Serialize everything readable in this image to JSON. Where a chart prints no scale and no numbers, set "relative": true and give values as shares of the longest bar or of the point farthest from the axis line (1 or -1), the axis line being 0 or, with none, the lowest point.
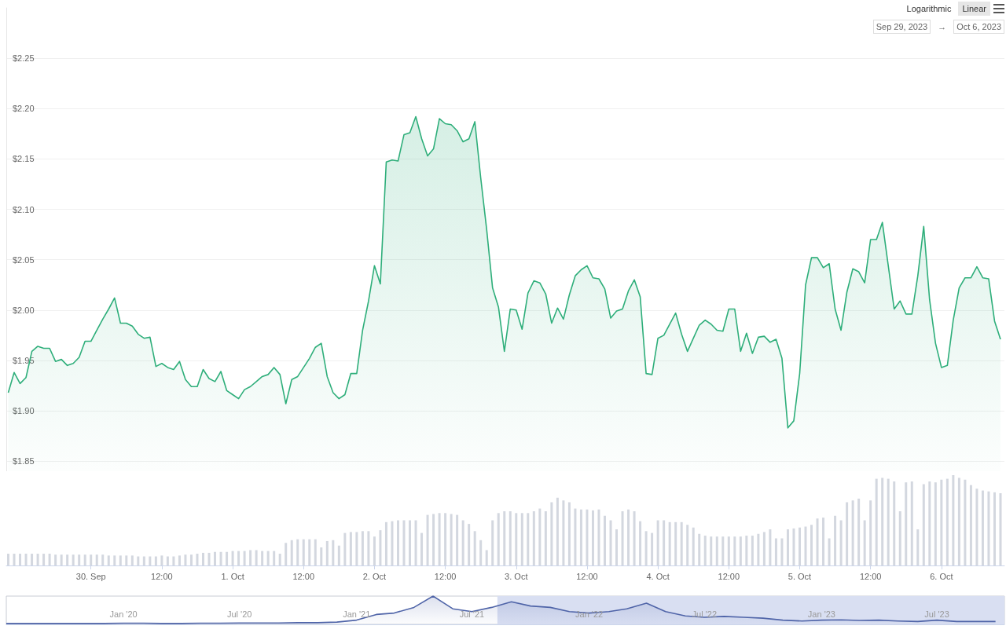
{
  "chart_data": [
    {
      "type": "area",
      "annotations": [
        "Logarithmic",
        "Linear",
        "Sep 29, 2023",
        "→",
        "Oct 6, 2023"
      ],
      "tick_labels": "y",
      "grid": "y",
      "xlim": [
        "2023-09-29T09:40",
        "2023-10-06T10:40"
      ],
      "ylim": [
        1.84,
        2.3
      ],
      "yticks": [
        {
          "value": 1.85,
          "label": "$1.85"
        },
        {
          "value": 1.9,
          "label": "$1.90"
        },
        {
          "value": 1.95,
          "label": "$1.95"
        },
        {
          "value": 2.0,
          "label": "$2.00"
        },
        {
          "value": 2.05,
          "label": "$2.05"
        },
        {
          "value": 2.1,
          "label": "$2.10"
        },
        {
          "value": 2.15,
          "label": "$2.15"
        },
        {
          "value": 2.2,
          "label": "$2.20"
        },
        {
          "value": 2.25,
          "label": "$2.25"
        }
      ],
      "x": [
        "2023-09-29T10:00",
        "2023-09-29T11:00",
        "2023-09-29T12:00",
        "2023-09-29T13:00",
        "2023-09-29T14:00",
        "2023-09-29T15:00",
        "2023-09-29T16:00",
        "2023-09-29T17:00",
        "2023-09-29T18:00",
        "2023-09-29T19:00",
        "2023-09-29T20:00",
        "2023-09-29T21:00",
        "2023-09-29T22:00",
        "2023-09-29T23:00",
        "2023-09-30T00:00",
        "2023-09-30T01:00",
        "2023-09-30T02:00",
        "2023-09-30T03:00",
        "2023-09-30T04:00",
        "2023-09-30T05:00",
        "2023-09-30T06:00",
        "2023-09-30T07:00",
        "2023-09-30T08:00",
        "2023-09-30T09:00",
        "2023-09-30T10:00",
        "2023-09-30T11:00",
        "2023-09-30T12:00",
        "2023-09-30T13:00",
        "2023-09-30T14:00",
        "2023-09-30T15:00",
        "2023-09-30T16:00",
        "2023-09-30T17:00",
        "2023-09-30T18:00",
        "2023-09-30T19:00",
        "2023-09-30T20:00",
        "2023-09-30T21:00",
        "2023-09-30T22:00",
        "2023-09-30T23:00",
        "2023-10-01T00:00",
        "2023-10-01T01:00",
        "2023-10-01T02:00",
        "2023-10-01T03:00",
        "2023-10-01T04:00",
        "2023-10-01T05:00",
        "2023-10-01T06:00",
        "2023-10-01T07:00",
        "2023-10-01T08:00",
        "2023-10-01T09:00",
        "2023-10-01T10:00",
        "2023-10-01T11:00",
        "2023-10-01T12:00",
        "2023-10-01T13:00",
        "2023-10-01T14:00",
        "2023-10-01T15:00",
        "2023-10-01T16:00",
        "2023-10-01T17:00",
        "2023-10-01T18:00",
        "2023-10-01T19:00",
        "2023-10-01T20:00",
        "2023-10-01T21:00",
        "2023-10-01T22:00",
        "2023-10-01T23:00",
        "2023-10-02T00:00",
        "2023-10-02T01:00",
        "2023-10-02T02:00",
        "2023-10-02T03:00",
        "2023-10-02T04:00",
        "2023-10-02T05:00",
        "2023-10-02T06:00",
        "2023-10-02T07:00",
        "2023-10-02T08:00",
        "2023-10-02T09:00",
        "2023-10-02T10:00",
        "2023-10-02T11:00",
        "2023-10-02T12:00",
        "2023-10-02T13:00",
        "2023-10-02T14:00",
        "2023-10-02T15:00",
        "2023-10-02T16:00",
        "2023-10-02T17:00",
        "2023-10-02T18:00",
        "2023-10-02T19:00",
        "2023-10-02T20:00",
        "2023-10-02T21:00",
        "2023-10-02T22:00",
        "2023-10-02T23:00",
        "2023-10-03T00:00",
        "2023-10-03T01:00",
        "2023-10-03T02:00",
        "2023-10-03T03:00",
        "2023-10-03T04:00",
        "2023-10-03T05:00",
        "2023-10-03T06:00",
        "2023-10-03T07:00",
        "2023-10-03T08:00",
        "2023-10-03T09:00",
        "2023-10-03T10:00",
        "2023-10-03T11:00",
        "2023-10-03T12:00",
        "2023-10-03T13:00",
        "2023-10-03T14:00",
        "2023-10-03T15:00",
        "2023-10-03T16:00",
        "2023-10-03T17:00",
        "2023-10-03T18:00",
        "2023-10-03T19:00",
        "2023-10-03T20:00",
        "2023-10-03T21:00",
        "2023-10-03T22:00",
        "2023-10-03T23:00",
        "2023-10-04T00:00",
        "2023-10-04T01:00",
        "2023-10-04T02:00",
        "2023-10-04T03:00",
        "2023-10-04T04:00",
        "2023-10-04T05:00",
        "2023-10-04T06:00",
        "2023-10-04T07:00",
        "2023-10-04T08:00",
        "2023-10-04T09:00",
        "2023-10-04T10:00",
        "2023-10-04T11:00",
        "2023-10-04T12:00",
        "2023-10-04T13:00",
        "2023-10-04T14:00",
        "2023-10-04T15:00",
        "2023-10-04T16:00",
        "2023-10-04T17:00",
        "2023-10-04T18:00",
        "2023-10-04T19:00",
        "2023-10-04T20:00",
        "2023-10-04T21:00",
        "2023-10-04T22:00",
        "2023-10-04T23:00",
        "2023-10-05T00:00",
        "2023-10-05T01:00",
        "2023-10-05T02:00",
        "2023-10-05T03:00",
        "2023-10-05T04:00",
        "2023-10-05T05:00",
        "2023-10-05T06:00",
        "2023-10-05T07:00",
        "2023-10-05T08:00",
        "2023-10-05T09:00",
        "2023-10-05T10:00",
        "2023-10-05T11:00",
        "2023-10-05T12:00",
        "2023-10-05T13:00",
        "2023-10-05T14:00",
        "2023-10-05T15:00",
        "2023-10-05T16:00",
        "2023-10-05T17:00",
        "2023-10-05T18:00",
        "2023-10-05T19:00",
        "2023-10-05T20:00",
        "2023-10-05T21:00",
        "2023-10-05T22:00",
        "2023-10-05T23:00",
        "2023-10-06T00:00",
        "2023-10-06T01:00",
        "2023-10-06T02:00",
        "2023-10-06T03:00",
        "2023-10-06T04:00",
        "2023-10-06T05:00",
        "2023-10-06T06:00",
        "2023-10-06T07:00",
        "2023-10-06T08:00",
        "2023-10-06T09:00",
        "2023-10-06T10:00"
      ],
      "series": [
        {
          "color": "#2eae7a",
          "values": [
            1.918,
            1.938,
            1.927,
            1.933,
            1.959,
            1.964,
            1.962,
            1.962,
            1.949,
            1.951,
            1.945,
            1.947,
            1.953,
            1.969,
            1.969,
            1.98,
            1.991,
            2.001,
            2.012,
            1.987,
            1.987,
            1.984,
            1.976,
            1.972,
            1.973,
            1.944,
            1.947,
            1.943,
            1.941,
            1.949,
            1.931,
            1.924,
            1.924,
            1.941,
            1.932,
            1.929,
            1.939,
            1.92,
            1.916,
            1.912,
            1.921,
            1.924,
            1.929,
            1.934,
            1.936,
            1.943,
            1.936,
            1.907,
            1.931,
            1.934,
            1.943,
            1.952,
            1.963,
            1.967,
            1.934,
            1.918,
            1.912,
            1.916,
            1.937,
            1.937,
            1.98,
            2.009,
            2.044,
            2.026,
            2.147,
            2.149,
            2.148,
            2.174,
            2.176,
            2.192,
            2.17,
            2.153,
            2.16,
            2.19,
            2.185,
            2.184,
            2.178,
            2.167,
            2.17,
            2.187,
            2.131,
            2.08,
            2.022,
            2.003,
            1.959,
            2.001,
            2.0,
            1.981,
            2.017,
            2.029,
            2.027,
            2.016,
            1.987,
            2.002,
            1.991,
            2.015,
            2.034,
            2.04,
            2.044,
            2.032,
            2.031,
            2.021,
            1.992,
            1.999,
            2.001,
            2.019,
            2.03,
            2.013,
            1.937,
            1.936,
            1.972,
            1.975,
            1.986,
            1.997,
            1.976,
            1.959,
            1.972,
            1.985,
            1.99,
            1.986,
            1.98,
            1.979,
            2.001,
            2.001,
            1.959,
            1.977,
            1.957,
            1.973,
            1.974,
            1.968,
            1.971,
            1.952,
            1.883,
            1.89,
            1.937,
            2.025,
            2.052,
            2.052,
            2.042,
            2.046,
            2.001,
            1.98,
            2.018,
            2.041,
            2.038,
            2.027,
            2.07,
            2.07,
            2.087,
            2.044,
            2.001,
            2.009,
            1.996,
            1.996,
            2.034,
            2.083,
            2.01,
            1.967,
            1.943,
            1.945,
            1.99,
            2.022,
            2.032,
            2.032,
            2.043,
            2.032,
            2.031,
            1.989,
            1.971
          ]
        }
      ]
    },
    {
      "type": "bar",
      "relative": true,
      "tick_labels": "x",
      "xlim": [
        "2023-09-29T09:40",
        "2023-10-06T10:40"
      ],
      "xticks": [
        {
          "value": "2023-09-30T00:00",
          "label": "30. Sep"
        },
        {
          "value": "2023-09-30T12:00",
          "label": "12:00"
        },
        {
          "value": "2023-10-01T00:00",
          "label": "1. Oct"
        },
        {
          "value": "2023-10-01T12:00",
          "label": "12:00"
        },
        {
          "value": "2023-10-02T00:00",
          "label": "2. Oct"
        },
        {
          "value": "2023-10-02T12:00",
          "label": "12:00"
        },
        {
          "value": "2023-10-03T00:00",
          "label": "3. Oct"
        },
        {
          "value": "2023-10-03T12:00",
          "label": "12:00"
        },
        {
          "value": "2023-10-04T00:00",
          "label": "4. Oct"
        },
        {
          "value": "2023-10-04T12:00",
          "label": "12:00"
        },
        {
          "value": "2023-10-05T00:00",
          "label": "5. Oct"
        },
        {
          "value": "2023-10-05T12:00",
          "label": "12:00"
        },
        {
          "value": "2023-10-06T00:00",
          "label": "6. Oct"
        }
      ],
      "x": [
        "2023-09-29T10:00",
        "2023-09-29T11:00",
        "2023-09-29T12:00",
        "2023-09-29T13:00",
        "2023-09-29T14:00",
        "2023-09-29T15:00",
        "2023-09-29T16:00",
        "2023-09-29T17:00",
        "2023-09-29T18:00",
        "2023-09-29T19:00",
        "2023-09-29T20:00",
        "2023-09-29T21:00",
        "2023-09-29T22:00",
        "2023-09-29T23:00",
        "2023-09-30T00:00",
        "2023-09-30T01:00",
        "2023-09-30T02:00",
        "2023-09-30T03:00",
        "2023-09-30T04:00",
        "2023-09-30T05:00",
        "2023-09-30T06:00",
        "2023-09-30T07:00",
        "2023-09-30T08:00",
        "2023-09-30T09:00",
        "2023-09-30T10:00",
        "2023-09-30T11:00",
        "2023-09-30T12:00",
        "2023-09-30T13:00",
        "2023-09-30T14:00",
        "2023-09-30T15:00",
        "2023-09-30T16:00",
        "2023-09-30T17:00",
        "2023-09-30T18:00",
        "2023-09-30T19:00",
        "2023-09-30T20:00",
        "2023-09-30T21:00",
        "2023-09-30T22:00",
        "2023-09-30T23:00",
        "2023-10-01T00:00",
        "2023-10-01T01:00",
        "2023-10-01T02:00",
        "2023-10-01T03:00",
        "2023-10-01T04:00",
        "2023-10-01T05:00",
        "2023-10-01T06:00",
        "2023-10-01T07:00",
        "2023-10-01T08:00",
        "2023-10-01T09:00",
        "2023-10-01T10:00",
        "2023-10-01T11:00",
        "2023-10-01T12:00",
        "2023-10-01T13:00",
        "2023-10-01T14:00",
        "2023-10-01T15:00",
        "2023-10-01T16:00",
        "2023-10-01T17:00",
        "2023-10-01T18:00",
        "2023-10-01T19:00",
        "2023-10-01T20:00",
        "2023-10-01T21:00",
        "2023-10-01T22:00",
        "2023-10-01T23:00",
        "2023-10-02T00:00",
        "2023-10-02T01:00",
        "2023-10-02T02:00",
        "2023-10-02T03:00",
        "2023-10-02T04:00",
        "2023-10-02T05:00",
        "2023-10-02T06:00",
        "2023-10-02T07:00",
        "2023-10-02T08:00",
        "2023-10-02T09:00",
        "2023-10-02T10:00",
        "2023-10-02T11:00",
        "2023-10-02T12:00",
        "2023-10-02T13:00",
        "2023-10-02T14:00",
        "2023-10-02T15:00",
        "2023-10-02T16:00",
        "2023-10-02T17:00",
        "2023-10-02T18:00",
        "2023-10-02T19:00",
        "2023-10-02T20:00",
        "2023-10-02T21:00",
        "2023-10-02T22:00",
        "2023-10-02T23:00",
        "2023-10-03T00:00",
        "2023-10-03T01:00",
        "2023-10-03T02:00",
        "2023-10-03T03:00",
        "2023-10-03T04:00",
        "2023-10-03T05:00",
        "2023-10-03T06:00",
        "2023-10-03T07:00",
        "2023-10-03T08:00",
        "2023-10-03T09:00",
        "2023-10-03T10:00",
        "2023-10-03T11:00",
        "2023-10-03T12:00",
        "2023-10-03T13:00",
        "2023-10-03T14:00",
        "2023-10-03T15:00",
        "2023-10-03T16:00",
        "2023-10-03T17:00",
        "2023-10-03T18:00",
        "2023-10-03T19:00",
        "2023-10-03T20:00",
        "2023-10-03T21:00",
        "2023-10-03T22:00",
        "2023-10-03T23:00",
        "2023-10-04T00:00",
        "2023-10-04T01:00",
        "2023-10-04T02:00",
        "2023-10-04T03:00",
        "2023-10-04T04:00",
        "2023-10-04T05:00",
        "2023-10-04T06:00",
        "2023-10-04T07:00",
        "2023-10-04T08:00",
        "2023-10-04T09:00",
        "2023-10-04T10:00",
        "2023-10-04T11:00",
        "2023-10-04T12:00",
        "2023-10-04T13:00",
        "2023-10-04T14:00",
        "2023-10-04T15:00",
        "2023-10-04T16:00",
        "2023-10-04T17:00",
        "2023-10-04T18:00",
        "2023-10-04T19:00",
        "2023-10-04T20:00",
        "2023-10-04T21:00",
        "2023-10-04T22:00",
        "2023-10-04T23:00",
        "2023-10-05T00:00",
        "2023-10-05T01:00",
        "2023-10-05T02:00",
        "2023-10-05T03:00",
        "2023-10-05T04:00",
        "2023-10-05T05:00",
        "2023-10-05T06:00",
        "2023-10-05T07:00",
        "2023-10-05T08:00",
        "2023-10-05T09:00",
        "2023-10-05T10:00",
        "2023-10-05T11:00",
        "2023-10-05T12:00",
        "2023-10-05T13:00",
        "2023-10-05T14:00",
        "2023-10-05T15:00",
        "2023-10-05T16:00",
        "2023-10-05T17:00",
        "2023-10-05T18:00",
        "2023-10-05T19:00",
        "2023-10-05T20:00",
        "2023-10-05T21:00",
        "2023-10-05T22:00",
        "2023-10-05T23:00",
        "2023-10-06T00:00",
        "2023-10-06T01:00",
        "2023-10-06T02:00",
        "2023-10-06T03:00",
        "2023-10-06T04:00",
        "2023-10-06T05:00",
        "2023-10-06T06:00",
        "2023-10-06T07:00",
        "2023-10-06T08:00",
        "2023-10-06T09:00",
        "2023-10-06T10:00"
      ],
      "series": [
        {
          "color": "#d3d7df",
          "values": [
            0.13,
            0.13,
            0.13,
            0.13,
            0.13,
            0.13,
            0.13,
            0.13,
            0.12,
            0.12,
            0.12,
            0.12,
            0.12,
            0.12,
            0.12,
            0.12,
            0.12,
            0.11,
            0.11,
            0.11,
            0.11,
            0.11,
            0.1,
            0.1,
            0.1,
            0.1,
            0.11,
            0.1,
            0.1,
            0.11,
            0.12,
            0.12,
            0.13,
            0.14,
            0.14,
            0.15,
            0.15,
            0.15,
            0.16,
            0.16,
            0.16,
            0.17,
            0.17,
            0.16,
            0.16,
            0.16,
            0.13,
            0.25,
            0.28,
            0.29,
            0.29,
            0.29,
            0.29,
            0.2,
            0.27,
            0.28,
            0.22,
            0.36,
            0.37,
            0.37,
            0.38,
            0.38,
            0.32,
            0.39,
            0.48,
            0.49,
            0.5,
            0.5,
            0.5,
            0.5,
            0.36,
            0.56,
            0.57,
            0.58,
            0.58,
            0.57,
            0.56,
            0.5,
            0.46,
            0.38,
            0.28,
            0.17,
            0.5,
            0.58,
            0.6,
            0.6,
            0.58,
            0.58,
            0.58,
            0.6,
            0.63,
            0.6,
            0.7,
            0.75,
            0.72,
            0.7,
            0.63,
            0.62,
            0.62,
            0.61,
            0.62,
            0.55,
            0.5,
            0.4,
            0.6,
            0.62,
            0.6,
            0.49,
            0.38,
            0.36,
            0.5,
            0.5,
            0.48,
            0.48,
            0.48,
            0.45,
            0.42,
            0.35,
            0.33,
            0.32,
            0.32,
            0.32,
            0.32,
            0.32,
            0.32,
            0.33,
            0.33,
            0.35,
            0.37,
            0.4,
            0.3,
            0.3,
            0.4,
            0.41,
            0.42,
            0.43,
            0.45,
            0.52,
            0.53,
            0.3,
            0.55,
            0.5,
            0.7,
            0.72,
            0.74,
            0.5,
            0.72,
            0.96,
            0.97,
            0.96,
            0.93,
            0.6,
            0.92,
            0.93,
            0.4,
            0.9,
            0.93,
            0.92,
            0.95,
            0.96,
            1.0,
            0.97,
            0.95,
            0.89,
            0.85,
            0.83,
            0.82,
            0.81,
            0.8
          ]
        }
      ]
    },
    {
      "type": "area",
      "relative": true,
      "tick_labels": "x",
      "xlim": [
        "2019-07-01",
        "2023-10-15"
      ],
      "xticks": [
        {
          "value": "2020-01-01",
          "label": "Jan '20"
        },
        {
          "value": "2020-07-01",
          "label": "Jul '20"
        },
        {
          "value": "2021-01-01",
          "label": "Jan '21"
        },
        {
          "value": "2021-07-01",
          "label": "Jul '21"
        },
        {
          "value": "2022-01-01",
          "label": "Jan '22"
        },
        {
          "value": "2022-07-01",
          "label": "Jul '22"
        },
        {
          "value": "2023-01-01",
          "label": "Jan '23"
        },
        {
          "value": "2023-07-01",
          "label": "Jul '23"
        }
      ],
      "bands": [
        {
          "axis": "x",
          "from": "2021-08-10",
          "to": "2023-10-15",
          "color": "#d9dff2"
        }
      ],
      "x": [
        "2019-07",
        "2019-08",
        "2019-09",
        "2019-10",
        "2019-11",
        "2019-12",
        "2020-01",
        "2020-02",
        "2020-03",
        "2020-04",
        "2020-05",
        "2020-06",
        "2020-07",
        "2020-08",
        "2020-09",
        "2020-10",
        "2020-11",
        "2020-12",
        "2021-01",
        "2021-02",
        "2021-03",
        "2021-04",
        "2021-05",
        "2021-06",
        "2021-07",
        "2021-08",
        "2021-09",
        "2021-10",
        "2021-11",
        "2021-12",
        "2022-01",
        "2022-02",
        "2022-03",
        "2022-04",
        "2022-05",
        "2022-06",
        "2022-07",
        "2022-08",
        "2022-09",
        "2022-10",
        "2022-11",
        "2022-12",
        "2023-01",
        "2023-02",
        "2023-03",
        "2023-04",
        "2023-05",
        "2023-06",
        "2023-07",
        "2023-08",
        "2023-09",
        "2023-10"
      ],
      "series": [
        {
          "color": "#4f64a8",
          "values": [
            0.03,
            0.03,
            0.03,
            0.03,
            0.03,
            0.03,
            0.04,
            0.04,
            0.03,
            0.03,
            0.04,
            0.04,
            0.05,
            0.05,
            0.05,
            0.06,
            0.06,
            0.08,
            0.15,
            0.35,
            0.4,
            0.6,
            1.0,
            0.55,
            0.45,
            0.6,
            0.8,
            0.65,
            0.6,
            0.45,
            0.4,
            0.45,
            0.55,
            0.75,
            0.45,
            0.3,
            0.25,
            0.28,
            0.25,
            0.22,
            0.15,
            0.12,
            0.15,
            0.16,
            0.14,
            0.15,
            0.12,
            0.1,
            0.15,
            0.1,
            0.1,
            0.1
          ]
        }
      ]
    }
  ]
}
